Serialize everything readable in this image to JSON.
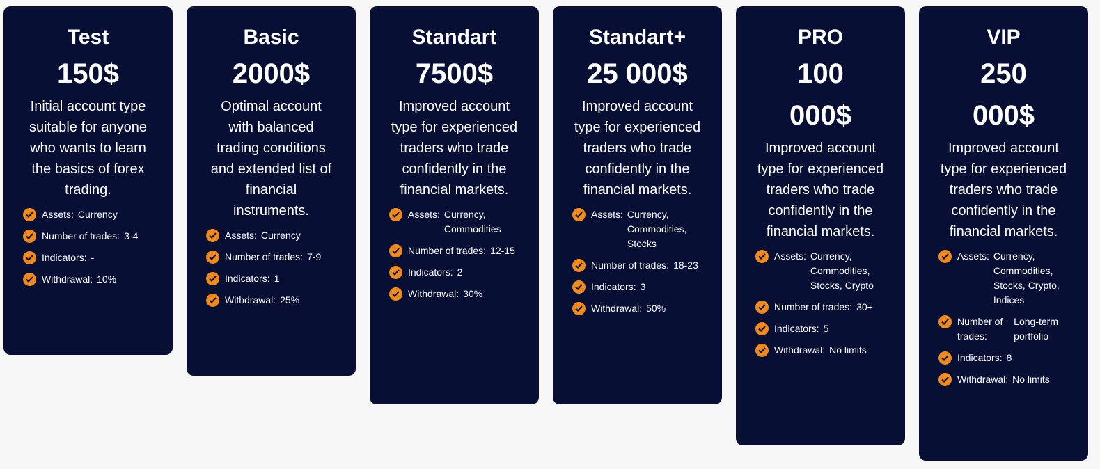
{
  "colors": {
    "card_bg": "#070f35",
    "accent": "#f08a1c",
    "page_bg": "#f7f7f7"
  },
  "icons": {
    "feature": "check-circle-icon"
  },
  "plans": [
    {
      "title": "Test",
      "price": "150$",
      "description": "Initial account type suitable for anyone who wants to learn the basics of forex trading.",
      "features": [
        {
          "label": "Assets:",
          "value": "Currency"
        },
        {
          "label": "Number of trades:",
          "value": "3-4"
        },
        {
          "label": "Indicators:",
          "value": "-"
        },
        {
          "label": "Withdrawal:",
          "value": "10%"
        }
      ]
    },
    {
      "title": "Basic",
      "price": "2000$",
      "description": "Optimal account with balanced trading conditions and extended list of financial instruments.",
      "features": [
        {
          "label": "Assets:",
          "value": "Currency"
        },
        {
          "label": "Number of trades:",
          "value": "7-9"
        },
        {
          "label": "Indicators:",
          "value": "1"
        },
        {
          "label": "Withdrawal:",
          "value": "25%"
        }
      ]
    },
    {
      "title": "Standart",
      "price": "7500$",
      "description": "Improved account type for experienced traders who trade confidently in the financial markets.",
      "features": [
        {
          "label": "Assets:",
          "value": "Currency, Commodities"
        },
        {
          "label": "Number of trades:",
          "value": "12-15"
        },
        {
          "label": "Indicators:",
          "value": "2"
        },
        {
          "label": "Withdrawal:",
          "value": "30%"
        }
      ]
    },
    {
      "title": "Standart+",
      "price": "25 000$",
      "description": "Improved account type for experienced traders who trade confidently in the financial markets.",
      "features": [
        {
          "label": "Assets:",
          "value": "Currency, Commodities, Stocks"
        },
        {
          "label": "Number of trades:",
          "value": "18-23"
        },
        {
          "label": "Indicators:",
          "value": "3"
        },
        {
          "label": "Withdrawal:",
          "value": "50%"
        }
      ]
    },
    {
      "title": "PRO",
      "price": "100 000$",
      "description": "Improved account type for experienced traders who trade confidently in the financial markets.",
      "features": [
        {
          "label": "Assets:",
          "value": "Currency, Commodities, Stocks, Crypto"
        },
        {
          "label": "Number of trades:",
          "value": "30+"
        },
        {
          "label": "Indicators:",
          "value": "5"
        },
        {
          "label": "Withdrawal:",
          "value": "No limits"
        }
      ]
    },
    {
      "title": "VIP",
      "price": "250 000$",
      "description": "Improved account type for experienced traders who trade confidently in the financial markets.",
      "features": [
        {
          "label": "Assets:",
          "value": "Currency, Commodities, Stocks, Crypto, Indices"
        },
        {
          "label": "Number of trades:",
          "value": "Long-term portfolio"
        },
        {
          "label": "Indicators:",
          "value": "8"
        },
        {
          "label": "Withdrawal:",
          "value": "No limits"
        }
      ]
    }
  ]
}
